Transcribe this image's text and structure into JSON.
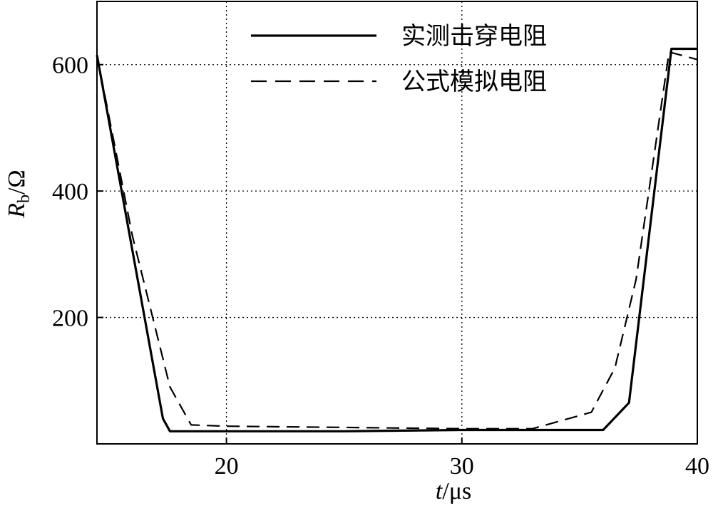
{
  "chart_data": {
    "type": "line",
    "title": "",
    "xlabel": {
      "symbol": "t",
      "unit": "/μs"
    },
    "ylabel": {
      "symbol": "R",
      "subscript": "b",
      "unit": "/Ω"
    },
    "xlim": [
      14.5,
      40
    ],
    "ylim": [
      0,
      700
    ],
    "xticks": [
      20,
      30,
      40
    ],
    "yticks": [
      200,
      400,
      600
    ],
    "grid": {
      "on": true,
      "style": "dotted"
    },
    "legend": {
      "placement": "top-center"
    },
    "series": [
      {
        "name": "实测击穿电阻",
        "style": "solid",
        "color": "#000000",
        "x": [
          14.5,
          17.3,
          17.6,
          20,
          25,
          30,
          33,
          36,
          37.1,
          38.9,
          40
        ],
        "y": [
          615,
          40,
          20,
          20,
          20,
          22,
          22,
          22,
          65,
          625,
          625
        ]
      },
      {
        "name": "公式模拟电阻",
        "style": "dashed",
        "color": "#000000",
        "x": [
          14.5,
          16,
          17.6,
          18.5,
          20,
          25,
          30,
          33,
          35.5,
          36.5,
          37.4,
          38.8,
          40
        ],
        "y": [
          615,
          330,
          90,
          30,
          28,
          26,
          24,
          24,
          50,
          120,
          260,
          620,
          608
        ]
      }
    ]
  }
}
